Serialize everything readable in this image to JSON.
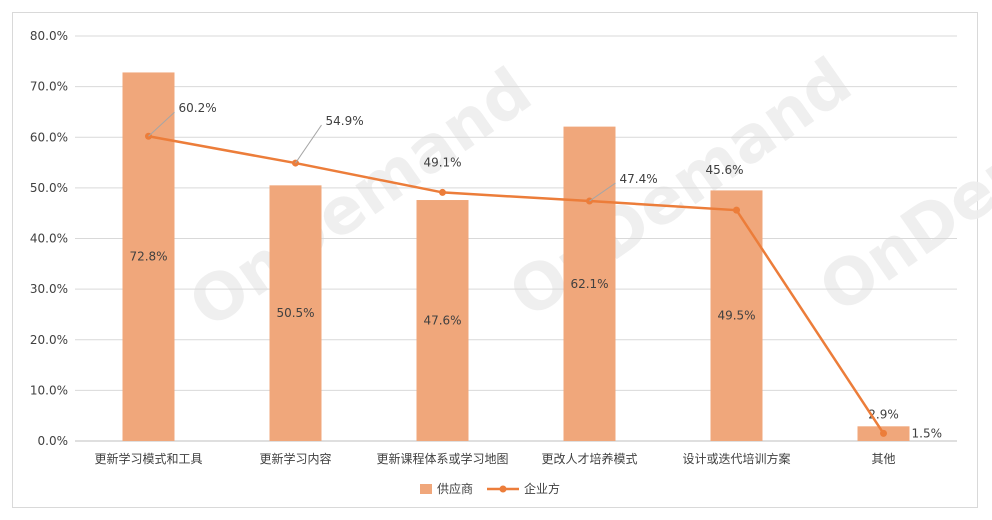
{
  "chart_data": {
    "type": "bar",
    "categories": [
      "更新学习模式和工具",
      "更新学习内容",
      "更新课程体系或学习地图",
      "更改人才培养模式",
      "设计或迭代培训方案",
      "其他"
    ],
    "ylim": [
      0,
      80
    ],
    "yticks": [
      "0.0%",
      "10.0%",
      "20.0%",
      "30.0%",
      "40.0%",
      "50.0%",
      "60.0%",
      "70.0%",
      "80.0%"
    ],
    "grid": true,
    "legend_position": "bottom",
    "series": [
      {
        "name": "供应商",
        "kind": "bar",
        "color": "#f0a77b",
        "values": [
          72.8,
          50.5,
          47.6,
          62.1,
          49.5,
          2.9
        ],
        "labels": [
          "72.8%",
          "50.5%",
          "47.6%",
          "62.1%",
          "49.5%",
          "2.9%"
        ]
      },
      {
        "name": "企业方",
        "kind": "line",
        "color": "#ec7d3a",
        "values": [
          60.2,
          54.9,
          49.1,
          47.4,
          45.6,
          1.5
        ],
        "labels": [
          "60.2%",
          "54.9%",
          "49.1%",
          "47.4%",
          "45.6%",
          "1.5%"
        ]
      }
    ]
  }
}
